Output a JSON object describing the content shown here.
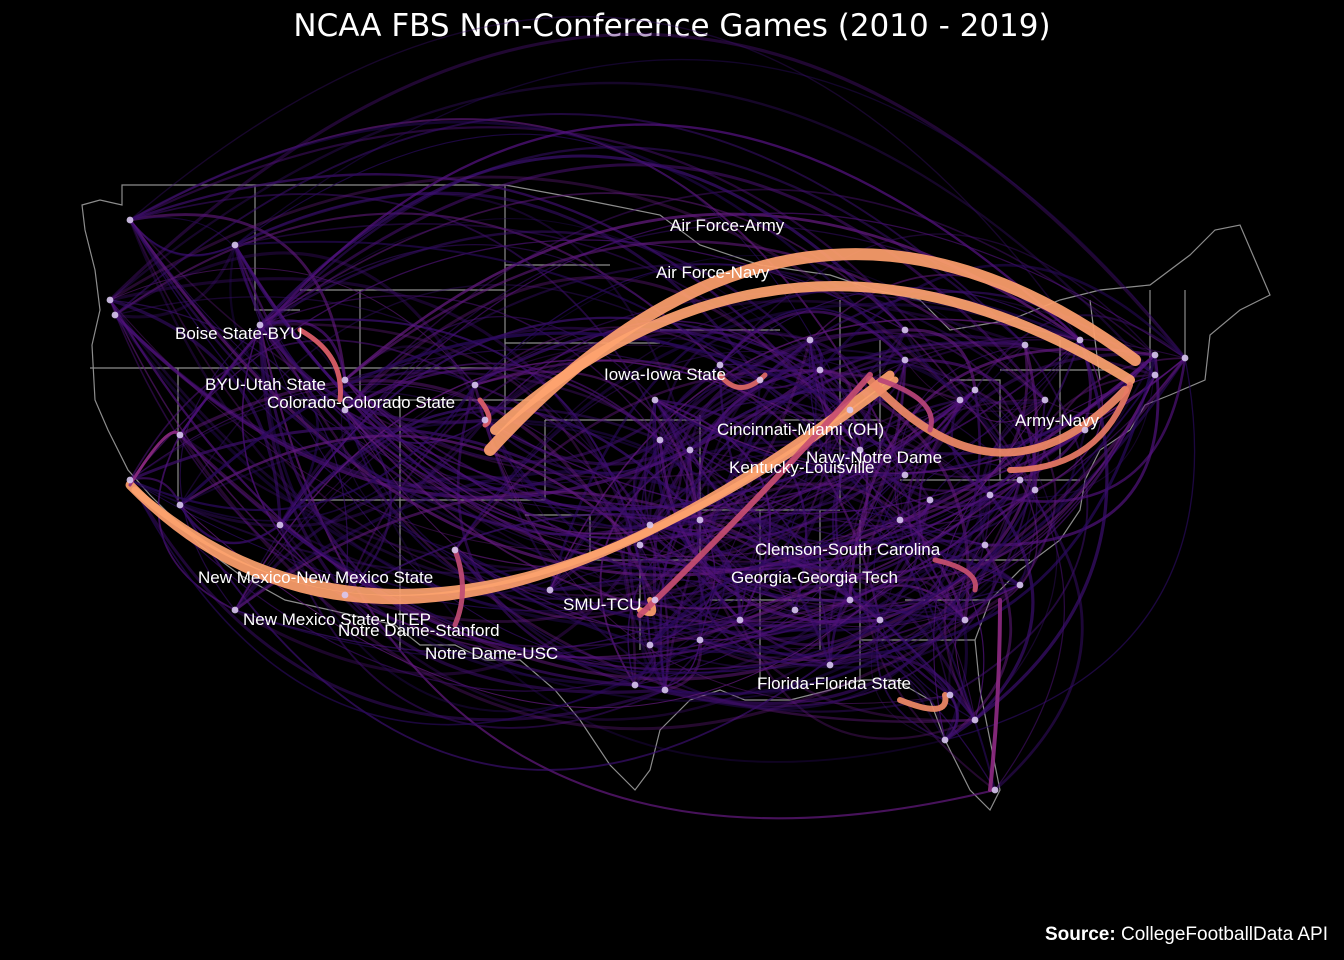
{
  "title": "NCAA FBS Non-Conference Games (2010 - 2019)",
  "caption": {
    "source_label": "Source:",
    "source_value": "CollegeFootballData API"
  },
  "colors": {
    "background": "#000000",
    "state_border": "#8c8c8c",
    "arc_low": "#3b0f70",
    "arc_mid": "#8c2981",
    "arc_high": "#fe9f6d",
    "label_text": "#ffffff",
    "dot": "#d8c8f0"
  },
  "rivalry_labels": [
    "Air Force-Army",
    "Air Force-Navy",
    "Boise State-BYU",
    "Iowa-Iowa State",
    "BYU-Utah State",
    "Colorado-Colorado State",
    "Army-Navy",
    "Cincinnati-Miami (OH)",
    "Navy-Notre Dame",
    "Kentucky-Louisville",
    "Clemson-South Carolina",
    "New Mexico-New Mexico State",
    "Georgia-Georgia Tech",
    "SMU-TCU",
    "New Mexico State-UTEP",
    "Notre Dame-Stanford",
    "Notre Dame-USC",
    "Florida-Florida State"
  ]
}
